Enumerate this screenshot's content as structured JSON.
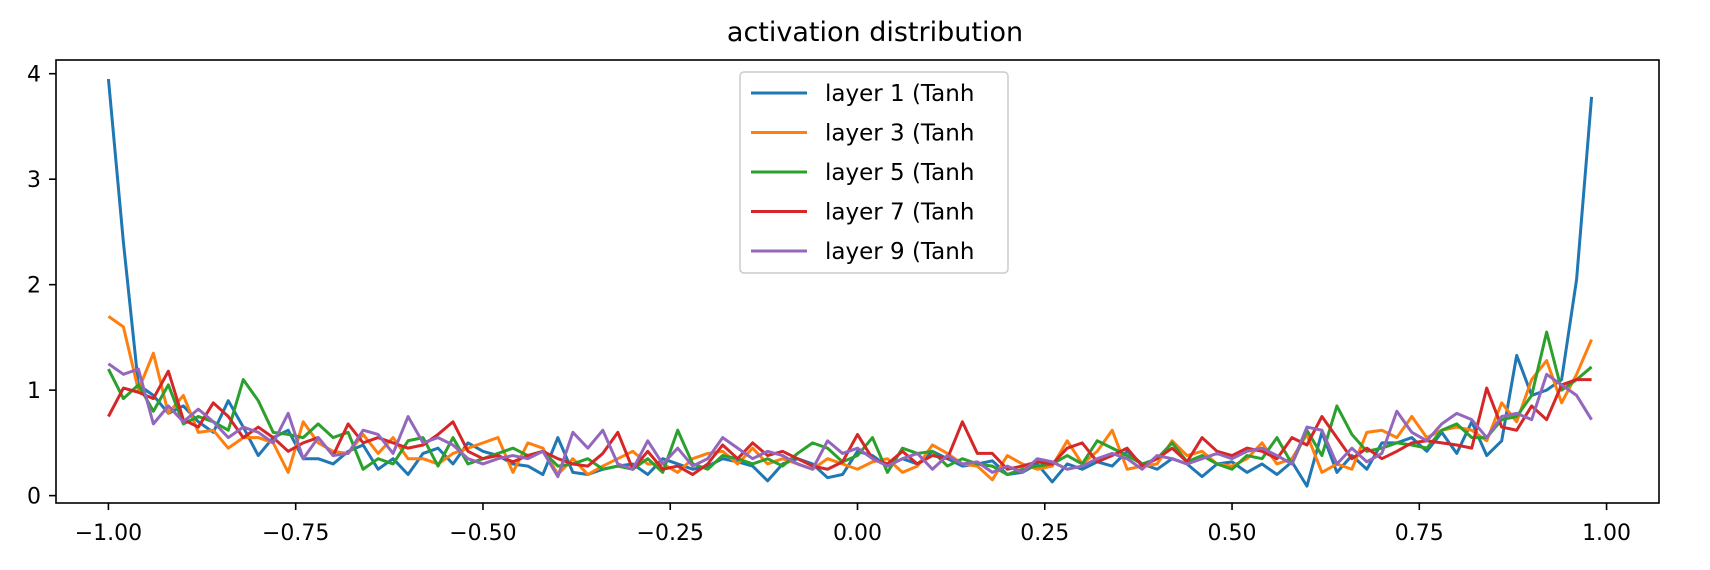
{
  "chart_data": {
    "type": "line",
    "title": "activation distribution",
    "xlabel": "",
    "ylabel": "",
    "xlim": [
      -1.07,
      1.07
    ],
    "ylim": [
      -0.07,
      4.13
    ],
    "xticks": [
      -1.0,
      -0.75,
      -0.5,
      -0.25,
      0.0,
      0.25,
      0.5,
      0.75,
      1.0
    ],
    "xtick_labels": [
      "−1.00",
      "−0.75",
      "−0.50",
      "−0.25",
      "0.00",
      "0.25",
      "0.50",
      "0.75",
      "1.00"
    ],
    "yticks": [
      0,
      1,
      2,
      3,
      4
    ],
    "ytick_labels": [
      "0",
      "1",
      "2",
      "3",
      "4"
    ],
    "grid": false,
    "legend_position": "top-center",
    "x": [
      -1.0,
      -0.98,
      -0.96,
      -0.94,
      -0.92,
      -0.9,
      -0.88,
      -0.86,
      -0.84,
      -0.82,
      -0.8,
      -0.78,
      -0.76,
      -0.74,
      -0.72,
      -0.7,
      -0.68,
      -0.66,
      -0.64,
      -0.62,
      -0.6,
      -0.58,
      -0.56,
      -0.54,
      -0.52,
      -0.5,
      -0.48,
      -0.46,
      -0.44,
      -0.42,
      -0.4,
      -0.38,
      -0.36,
      -0.34,
      -0.32,
      -0.3,
      -0.28,
      -0.26,
      -0.24,
      -0.22,
      -0.2,
      -0.18,
      -0.16,
      -0.14,
      -0.12,
      -0.1,
      -0.08,
      -0.06,
      -0.04,
      -0.02,
      0.0,
      0.02,
      0.04,
      0.06,
      0.08,
      0.1,
      0.12,
      0.14,
      0.16,
      0.18,
      0.2,
      0.22,
      0.24,
      0.26,
      0.28,
      0.3,
      0.32,
      0.34,
      0.36,
      0.38,
      0.4,
      0.42,
      0.44,
      0.46,
      0.48,
      0.5,
      0.52,
      0.54,
      0.56,
      0.58,
      0.6,
      0.62,
      0.64,
      0.66,
      0.68,
      0.7,
      0.72,
      0.74,
      0.76,
      0.78,
      0.8,
      0.82,
      0.84,
      0.86,
      0.88,
      0.9,
      0.92,
      0.94,
      0.96,
      0.98
    ],
    "series": [
      {
        "name": "layer 1 (Tanh",
        "color": "#1f77b4",
        "values": [
          3.95,
          2.4,
          1.05,
          0.95,
          0.78,
          0.85,
          0.7,
          0.6,
          0.9,
          0.65,
          0.38,
          0.55,
          0.62,
          0.35,
          0.35,
          0.3,
          0.42,
          0.48,
          0.25,
          0.35,
          0.2,
          0.4,
          0.45,
          0.3,
          0.5,
          0.42,
          0.38,
          0.3,
          0.28,
          0.2,
          0.55,
          0.22,
          0.2,
          0.25,
          0.28,
          0.3,
          0.2,
          0.35,
          0.3,
          0.25,
          0.28,
          0.35,
          0.32,
          0.28,
          0.14,
          0.3,
          0.35,
          0.3,
          0.17,
          0.2,
          0.42,
          0.38,
          0.28,
          0.35,
          0.3,
          0.42,
          0.35,
          0.28,
          0.3,
          0.33,
          0.2,
          0.22,
          0.3,
          0.13,
          0.3,
          0.25,
          0.32,
          0.28,
          0.42,
          0.3,
          0.25,
          0.35,
          0.3,
          0.18,
          0.3,
          0.32,
          0.22,
          0.3,
          0.2,
          0.32,
          0.09,
          0.6,
          0.22,
          0.38,
          0.25,
          0.5,
          0.5,
          0.55,
          0.42,
          0.6,
          0.4,
          0.7,
          0.38,
          0.52,
          1.33,
          0.95,
          1.0,
          1.1,
          2.05,
          3.78
        ]
      },
      {
        "name": "layer 3 (Tanh",
        "color": "#ff7f0e",
        "values": [
          1.7,
          1.6,
          1.0,
          1.35,
          0.78,
          0.95,
          0.6,
          0.62,
          0.45,
          0.55,
          0.55,
          0.5,
          0.22,
          0.7,
          0.5,
          0.42,
          0.4,
          0.58,
          0.4,
          0.55,
          0.35,
          0.35,
          0.3,
          0.4,
          0.45,
          0.5,
          0.55,
          0.22,
          0.5,
          0.45,
          0.2,
          0.35,
          0.2,
          0.28,
          0.35,
          0.42,
          0.3,
          0.3,
          0.22,
          0.35,
          0.4,
          0.42,
          0.3,
          0.45,
          0.3,
          0.35,
          0.3,
          0.25,
          0.35,
          0.3,
          0.25,
          0.32,
          0.35,
          0.22,
          0.28,
          0.48,
          0.4,
          0.3,
          0.28,
          0.15,
          0.38,
          0.3,
          0.25,
          0.28,
          0.52,
          0.3,
          0.42,
          0.62,
          0.25,
          0.28,
          0.3,
          0.52,
          0.38,
          0.42,
          0.3,
          0.28,
          0.35,
          0.5,
          0.3,
          0.35,
          0.58,
          0.22,
          0.3,
          0.25,
          0.6,
          0.62,
          0.55,
          0.75,
          0.55,
          0.62,
          0.65,
          0.62,
          0.52,
          0.88,
          0.7,
          1.1,
          1.28,
          0.88,
          1.15,
          1.48
        ]
      },
      {
        "name": "layer 5 (Tanh",
        "color": "#2ca02c",
        "values": [
          1.2,
          0.92,
          1.05,
          0.8,
          1.05,
          0.68,
          0.75,
          0.7,
          0.62,
          1.1,
          0.9,
          0.6,
          0.58,
          0.55,
          0.68,
          0.55,
          0.6,
          0.25,
          0.35,
          0.3,
          0.52,
          0.55,
          0.28,
          0.55,
          0.3,
          0.35,
          0.4,
          0.45,
          0.38,
          0.42,
          0.28,
          0.3,
          0.35,
          0.25,
          0.28,
          0.25,
          0.35,
          0.22,
          0.62,
          0.3,
          0.25,
          0.38,
          0.35,
          0.3,
          0.35,
          0.28,
          0.4,
          0.5,
          0.45,
          0.32,
          0.38,
          0.55,
          0.22,
          0.45,
          0.4,
          0.42,
          0.28,
          0.35,
          0.3,
          0.28,
          0.2,
          0.25,
          0.28,
          0.3,
          0.38,
          0.3,
          0.52,
          0.45,
          0.38,
          0.3,
          0.35,
          0.5,
          0.32,
          0.38,
          0.3,
          0.25,
          0.38,
          0.35,
          0.55,
          0.3,
          0.62,
          0.38,
          0.85,
          0.58,
          0.42,
          0.45,
          0.5,
          0.48,
          0.45,
          0.62,
          0.68,
          0.55,
          0.55,
          0.72,
          0.75,
          0.95,
          1.55,
          1.0,
          1.1,
          1.22
        ]
      },
      {
        "name": "layer 7 (Tanh",
        "color": "#d62728",
        "values": [
          0.75,
          1.02,
          0.98,
          0.92,
          1.18,
          0.72,
          0.65,
          0.88,
          0.75,
          0.55,
          0.65,
          0.55,
          0.42,
          0.5,
          0.55,
          0.38,
          0.68,
          0.5,
          0.55,
          0.5,
          0.45,
          0.48,
          0.58,
          0.7,
          0.42,
          0.35,
          0.38,
          0.32,
          0.38,
          0.42,
          0.35,
          0.3,
          0.28,
          0.4,
          0.6,
          0.25,
          0.42,
          0.25,
          0.28,
          0.2,
          0.3,
          0.48,
          0.35,
          0.5,
          0.38,
          0.42,
          0.35,
          0.28,
          0.25,
          0.32,
          0.58,
          0.35,
          0.3,
          0.42,
          0.3,
          0.38,
          0.35,
          0.7,
          0.4,
          0.4,
          0.25,
          0.28,
          0.32,
          0.3,
          0.45,
          0.5,
          0.32,
          0.38,
          0.45,
          0.28,
          0.35,
          0.45,
          0.32,
          0.55,
          0.42,
          0.38,
          0.45,
          0.42,
          0.35,
          0.55,
          0.48,
          0.75,
          0.55,
          0.35,
          0.45,
          0.35,
          0.42,
          0.5,
          0.52,
          0.5,
          0.48,
          0.45,
          1.02,
          0.65,
          0.62,
          0.85,
          0.72,
          1.05,
          1.1,
          1.1
        ]
      },
      {
        "name": "layer 9 (Tanh",
        "color": "#9467bd",
        "values": [
          1.25,
          1.15,
          1.2,
          0.68,
          0.85,
          0.7,
          0.82,
          0.7,
          0.55,
          0.65,
          0.6,
          0.5,
          0.78,
          0.35,
          0.55,
          0.38,
          0.4,
          0.62,
          0.58,
          0.4,
          0.75,
          0.5,
          0.55,
          0.48,
          0.35,
          0.3,
          0.35,
          0.38,
          0.35,
          0.42,
          0.18,
          0.6,
          0.45,
          0.62,
          0.3,
          0.25,
          0.52,
          0.3,
          0.45,
          0.28,
          0.35,
          0.55,
          0.45,
          0.35,
          0.42,
          0.38,
          0.3,
          0.25,
          0.52,
          0.4,
          0.45,
          0.35,
          0.28,
          0.35,
          0.4,
          0.25,
          0.38,
          0.3,
          0.32,
          0.22,
          0.28,
          0.22,
          0.35,
          0.32,
          0.25,
          0.28,
          0.35,
          0.4,
          0.35,
          0.25,
          0.38,
          0.35,
          0.3,
          0.35,
          0.4,
          0.35,
          0.42,
          0.45,
          0.38,
          0.3,
          0.65,
          0.62,
          0.3,
          0.45,
          0.32,
          0.4,
          0.8,
          0.6,
          0.52,
          0.68,
          0.78,
          0.72,
          0.55,
          0.75,
          0.78,
          0.72,
          1.15,
          1.05,
          0.95,
          0.72
        ]
      }
    ]
  }
}
